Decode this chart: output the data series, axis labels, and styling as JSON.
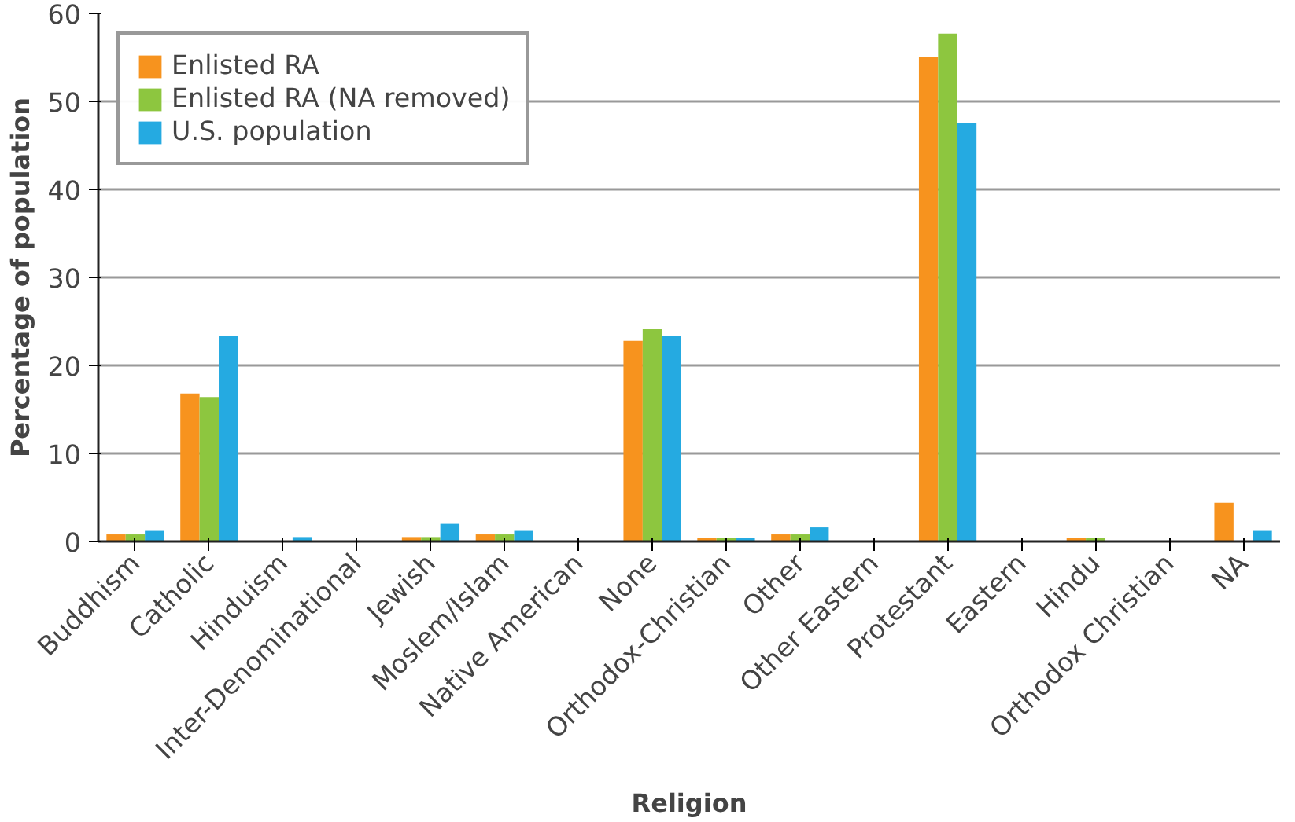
{
  "chart_data": {
    "type": "bar",
    "xlabel": "Religion",
    "ylabel": "Percentage of population",
    "categories": [
      "Buddhism",
      "Catholic",
      "Hinduism",
      "Inter-Denominational",
      "Jewish",
      "Moslem/Islam",
      "Native American",
      "None",
      "Orthodox-Christian",
      "Other",
      "Other Eastern",
      "Protestant",
      "Eastern",
      "Hindu",
      "Orthodox Christian",
      "NA"
    ],
    "series": [
      {
        "name": "Enlisted RA",
        "color": "#f7931e",
        "values": [
          0.8,
          16.8,
          0,
          0,
          0.5,
          0.8,
          0,
          22.8,
          0.4,
          0.8,
          0,
          55.0,
          0,
          0.4,
          0,
          4.4
        ]
      },
      {
        "name": "Enlisted RA (NA removed)",
        "color": "#8dc63f",
        "values": [
          0.8,
          16.4,
          0,
          0,
          0.5,
          0.8,
          0,
          24.1,
          0.4,
          0.8,
          0,
          57.7,
          0,
          0.4,
          0,
          null
        ]
      },
      {
        "name": "U.S. population",
        "color": "#25aae1",
        "values": [
          1.2,
          23.4,
          0.5,
          0,
          2.0,
          1.2,
          0,
          23.4,
          0.4,
          1.6,
          0,
          47.5,
          0,
          0,
          0,
          1.2
        ]
      }
    ],
    "ylim": [
      0,
      60
    ],
    "yticks": [
      0,
      10,
      20,
      30,
      40,
      50,
      60
    ],
    "grid": "y",
    "legend": "top left"
  }
}
